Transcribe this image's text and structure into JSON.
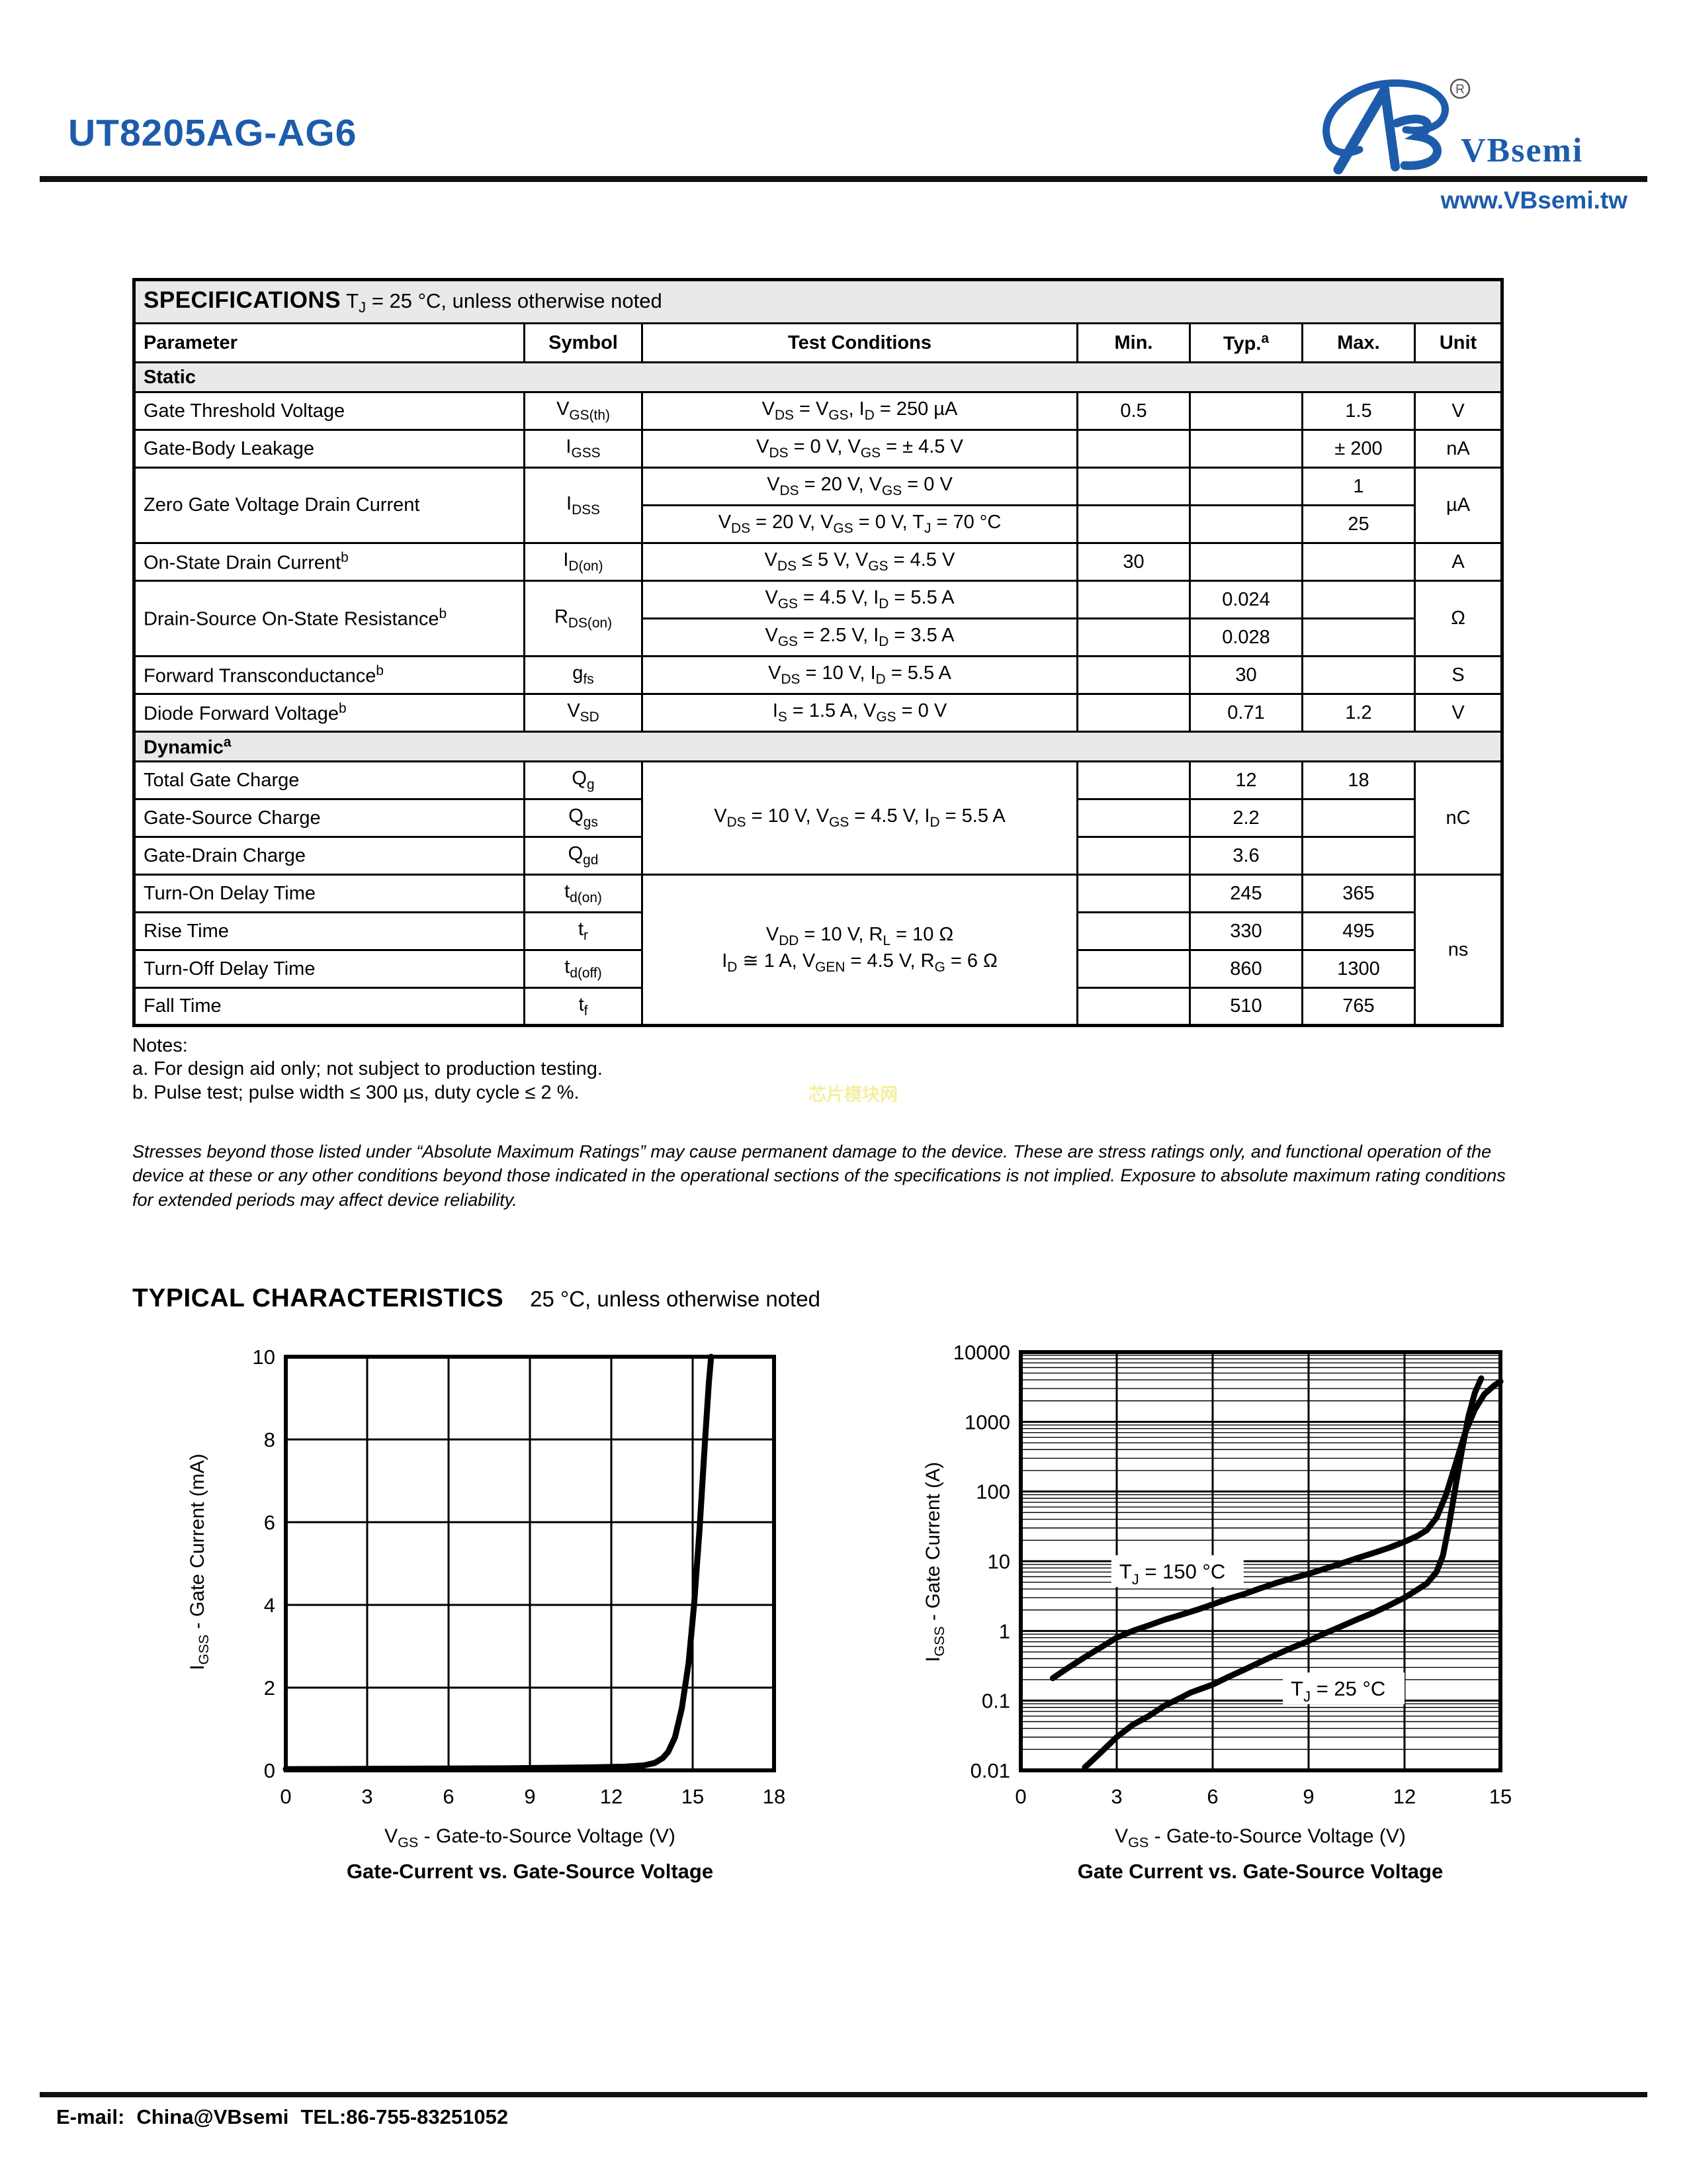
{
  "header": {
    "part_number": "UT8205AG-AG6",
    "brand": "VBsemi",
    "registered": "®",
    "website": "www.VBsemi.tw"
  },
  "spec_table": {
    "title": "SPECIFICATIONS",
    "subtitle": "T_{J} = 25 °C, unless otherwise noted",
    "columns": {
      "parameter": "Parameter",
      "symbol": "Symbol",
      "conditions": "Test Conditions",
      "min": "Min.",
      "typ": "Typ.^{a}",
      "max": "Max.",
      "unit": "Unit"
    },
    "sections": {
      "static": "Static",
      "dynamic": "Dynamic^{a}"
    },
    "rows": {
      "vgsth": {
        "param": "Gate Threshold Voltage",
        "sym": "V_{GS(th)}",
        "cond": "V_{DS} = V_{GS}, I_{D} = 250 µA",
        "min": "0.5",
        "typ": "",
        "max": "1.5",
        "unit": "V"
      },
      "igss": {
        "param": "Gate-Body Leakage",
        "sym": "I_{GSS}",
        "cond": "V_{DS} = 0 V, V_{GS} = ± 4.5 V",
        "min": "",
        "typ": "",
        "max": "± 200",
        "unit": "nA"
      },
      "idss": {
        "param": "Zero Gate Voltage Drain Current",
        "sym": "I_{DSS}",
        "cond1": "V_{DS} = 20 V, V_{GS} = 0 V",
        "min1": "",
        "typ1": "",
        "max1": "1",
        "cond2": "V_{DS} = 20 V, V_{GS} = 0 V, T_{J} = 70 °C",
        "min2": "",
        "typ2": "",
        "max2": "25",
        "unit": "µA"
      },
      "idon": {
        "param": "On-State Drain Current^{b}",
        "sym": "I_{D(on)}",
        "cond": "V_{DS} ≤ 5 V, V_{GS} = 4.5 V",
        "min": "30",
        "typ": "",
        "max": "",
        "unit": "A"
      },
      "rdson": {
        "param": "Drain-Source On-State Resistance^{b}",
        "sym": "R_{DS(on)}",
        "cond1": "V_{GS} = 4.5 V, I_{D} = 5.5 A",
        "min1": "",
        "typ1": "0.024",
        "max1": "",
        "cond2": "V_{GS} = 2.5 V, I_{D} = 3.5 A",
        "min2": "",
        "typ2": "0.028",
        "max2": "",
        "unit": "Ω"
      },
      "gfs": {
        "param": "Forward Transconductance^{b}",
        "sym": "g_{fs}",
        "cond": "V_{DS} = 10 V, I_{D} = 5.5 A",
        "min": "",
        "typ": "30",
        "max": "",
        "unit": "S"
      },
      "vsd": {
        "param": "Diode Forward Voltage^{b}",
        "sym": "V_{SD}",
        "cond": "I_{S} = 1.5 A, V_{GS} = 0 V",
        "min": "",
        "typ": "0.71",
        "max": "1.2",
        "unit": "V"
      },
      "charge_cond": "V_{DS} = 10 V, V_{GS} = 4.5 V, I_{D} = 5.5 A",
      "charge_unit": "nC",
      "qg": {
        "param": "Total Gate Charge",
        "sym": "Q_{g}",
        "min": "",
        "typ": "12",
        "max": "18"
      },
      "qgs": {
        "param": "Gate-Source Charge",
        "sym": "Q_{gs}",
        "min": "",
        "typ": "2.2",
        "max": ""
      },
      "qgd": {
        "param": "Gate-Drain Charge",
        "sym": "Q_{gd}",
        "min": "",
        "typ": "3.6",
        "max": ""
      },
      "switch_cond1": "V_{DD} = 10 V, R_{L} = 10 Ω",
      "switch_cond2": "I_{D} ≅ 1 A, V_{GEN} = 4.5 V, R_{G} = 6 Ω",
      "switch_unit": "ns",
      "tdon": {
        "param": "Turn-On Delay Time",
        "sym": "t_{d(on)}",
        "min": "",
        "typ": "245",
        "max": "365"
      },
      "tr": {
        "param": "Rise Time",
        "sym": "t_{r}",
        "min": "",
        "typ": "330",
        "max": "495"
      },
      "tdoff": {
        "param": "Turn-Off Delay Time",
        "sym": "t_{d(off)}",
        "min": "",
        "typ": "860",
        "max": "1300"
      },
      "tf": {
        "param": "Fall Time",
        "sym": "t_{f}",
        "min": "",
        "typ": "510",
        "max": "765"
      }
    }
  },
  "notes": {
    "heading": "Notes:",
    "a": "a. For design aid only; not subject to production testing.",
    "b": "b. Pulse test; pulse width ≤ 300 µs, duty cycle ≤ 2 %."
  },
  "watermark": "芯片模块网",
  "disclaimer": "Stresses beyond those listed under “Absolute Maximum Ratings” may cause permanent damage to the device. These are stress ratings only, and functional operation of the device at these or any other conditions beyond those indicated in the operational sections of the specifications is not implied. Exposure to absolute maximum rating conditions for extended periods may affect device reliability.",
  "typical": {
    "title": "TYPICAL CHARACTERISTICS",
    "subtitle": "25 °C, unless otherwise noted"
  },
  "chart_data": [
    {
      "type": "line",
      "title": "Gate-Current vs. Gate-Source Voltage",
      "xlabel": "V_{GS} - Gate-to-Source Voltage (V)",
      "ylabel": "I_{GSS} - Gate Current (mA)",
      "xlim": [
        0,
        18
      ],
      "ylim": [
        0,
        10
      ],
      "yscale": "linear",
      "grid": true,
      "legend_position": "none",
      "xticks": [
        0,
        3,
        6,
        9,
        12,
        15,
        18
      ],
      "yticks": [
        0,
        2,
        4,
        6,
        8,
        10
      ],
      "series": [
        {
          "name": "gate current",
          "x": [
            0,
            4,
            8,
            11,
            12.5,
            13.2,
            13.6,
            13.9,
            14.1,
            14.35,
            14.6,
            14.85,
            15.05,
            15.25,
            15.45,
            15.6,
            15.68
          ],
          "y": [
            0.03,
            0.04,
            0.05,
            0.07,
            0.09,
            0.12,
            0.18,
            0.3,
            0.45,
            0.8,
            1.5,
            2.6,
            4,
            5.8,
            7.9,
            9.4,
            10
          ]
        }
      ],
      "annotations": []
    },
    {
      "type": "line",
      "title": "Gate Current vs. Gate-Source Voltage",
      "xlabel": "V_{GS} - Gate-to-Source Voltage (V)",
      "ylabel": "I_{GSS} - Gate Current (A)",
      "xlim": [
        0,
        15
      ],
      "ylim": [
        0.01,
        10000
      ],
      "yscale": "log",
      "grid": true,
      "legend_position": "inline-labels",
      "xticks": [
        0,
        3,
        6,
        9,
        12,
        15
      ],
      "yticks": [
        0.01,
        0.1,
        1,
        10,
        100,
        1000,
        10000
      ],
      "series": [
        {
          "name": "T_{J} = 150 °C",
          "x": [
            1,
            1.5,
            2,
            2.5,
            3,
            3.5,
            4,
            4.5,
            5,
            5.5,
            6,
            6.5,
            7,
            7.5,
            8,
            8.5,
            9,
            9.5,
            10,
            10.5,
            11,
            11.5,
            12,
            12.4,
            12.7,
            13,
            13.3,
            13.6,
            13.9,
            14.2,
            14.5,
            14.8,
            15
          ],
          "y": [
            0.21,
            0.3,
            0.42,
            0.58,
            0.8,
            1,
            1.2,
            1.45,
            1.7,
            2,
            2.4,
            2.9,
            3.4,
            4.1,
            4.9,
            5.7,
            6.6,
            7.8,
            9.2,
            11,
            13,
            15.5,
            19,
            23,
            28,
            42,
            90,
            250,
            700,
            1500,
            2500,
            3300,
            3800
          ]
        },
        {
          "name": "T_{J} = 25 °C",
          "x": [
            2,
            2.5,
            3,
            3.5,
            4,
            4.5,
            5,
            5.3,
            6,
            6.5,
            7,
            7.5,
            8,
            8.5,
            9,
            9.5,
            10,
            10.5,
            11,
            11.5,
            12,
            12.4,
            12.7,
            13,
            13.2,
            13.4,
            13.6,
            13.8,
            14,
            14.2,
            14.4
          ],
          "y": [
            0.011,
            0.018,
            0.03,
            0.045,
            0.06,
            0.085,
            0.11,
            0.13,
            0.17,
            0.22,
            0.28,
            0.36,
            0.46,
            0.58,
            0.72,
            0.92,
            1.15,
            1.45,
            1.8,
            2.3,
            3,
            3.9,
            4.8,
            7,
            12,
            35,
            120,
            400,
            1200,
            2600,
            4200
          ]
        }
      ],
      "annotations": [
        {
          "text": "T_{J} = 150 °C",
          "x": 4.9,
          "y": 7.2
        },
        {
          "text": "T_{J} = 25 °C",
          "x": 10.1,
          "y": 0.15
        }
      ]
    }
  ],
  "footer": {
    "email_label": "E-mail:",
    "email": "China@VBsemi",
    "tel": "TEL:86-755-83251052"
  }
}
